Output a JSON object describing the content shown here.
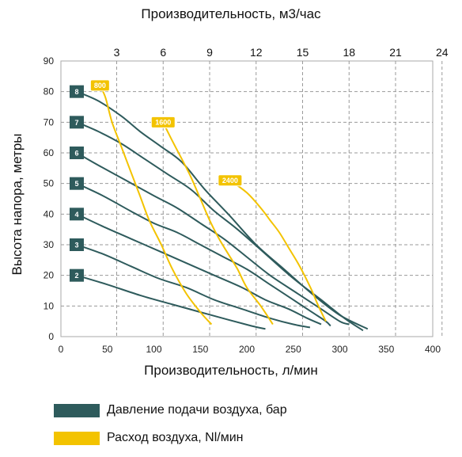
{
  "chart_data": {
    "type": "line",
    "title": "",
    "top_axis": {
      "label": "Производительность, м3/час",
      "ticks": [
        "3",
        "6",
        "9",
        "12",
        "15",
        "18",
        "21",
        "24"
      ],
      "tick_x": [
        60,
        110,
        160,
        210,
        260,
        310,
        360,
        410
      ]
    },
    "xlabel": "Производительность, л/мин",
    "ylabel": "Высота напора, метры",
    "xlim": [
      0,
      400
    ],
    "ylim": [
      0,
      90
    ],
    "x_ticks": [
      "0",
      "50",
      "100",
      "150",
      "200",
      "250",
      "300",
      "350",
      "400"
    ],
    "y_ticks": [
      "0",
      "10",
      "20",
      "30",
      "40",
      "50",
      "60",
      "70",
      "80",
      "90"
    ],
    "grid": true,
    "colors": {
      "pressure": "#2e5b5c",
      "air": "#f3c300"
    },
    "series": [
      {
        "group": "pressure",
        "tag": "8",
        "points": [
          [
            17,
            80
          ],
          [
            40,
            77
          ],
          [
            65,
            72
          ],
          [
            85,
            67
          ],
          [
            108,
            62
          ],
          [
            130,
            57
          ],
          [
            155,
            48
          ],
          [
            180,
            40
          ],
          [
            210,
            30
          ],
          [
            240,
            22
          ],
          [
            270,
            14
          ],
          [
            300,
            7
          ],
          [
            330,
            2.5
          ]
        ]
      },
      {
        "group": "pressure",
        "tag": "7",
        "points": [
          [
            17,
            70
          ],
          [
            40,
            67
          ],
          [
            65,
            63
          ],
          [
            90,
            58
          ],
          [
            115,
            53
          ],
          [
            140,
            48
          ],
          [
            165,
            41
          ],
          [
            190,
            35
          ],
          [
            220,
            27
          ],
          [
            250,
            19
          ],
          [
            280,
            12
          ],
          [
            305,
            6
          ],
          [
            325,
            2
          ]
        ]
      },
      {
        "group": "pressure",
        "tag": "6",
        "points": [
          [
            17,
            60
          ],
          [
            40,
            56
          ],
          [
            70,
            51
          ],
          [
            100,
            46
          ],
          [
            125,
            42
          ],
          [
            150,
            37
          ],
          [
            175,
            32
          ],
          [
            200,
            26
          ],
          [
            225,
            20
          ],
          [
            255,
            14
          ],
          [
            280,
            9
          ],
          [
            300,
            5
          ],
          [
            310,
            4
          ]
        ]
      },
      {
        "group": "pressure",
        "tag": "5",
        "points": [
          [
            17,
            50
          ],
          [
            45,
            46
          ],
          [
            75,
            41
          ],
          [
            100,
            37
          ],
          [
            125,
            34
          ],
          [
            150,
            30
          ],
          [
            175,
            26
          ],
          [
            200,
            22
          ],
          [
            225,
            17
          ],
          [
            250,
            12
          ],
          [
            270,
            8
          ],
          [
            285,
            5
          ],
          [
            290,
            3.5
          ]
        ]
      },
      {
        "group": "pressure",
        "tag": "4",
        "points": [
          [
            17,
            40
          ],
          [
            45,
            36
          ],
          [
            75,
            32
          ],
          [
            105,
            28
          ],
          [
            135,
            24
          ],
          [
            165,
            20
          ],
          [
            195,
            16
          ],
          [
            220,
            12
          ],
          [
            245,
            9
          ],
          [
            265,
            6
          ],
          [
            280,
            4
          ]
        ]
      },
      {
        "group": "pressure",
        "tag": "3",
        "points": [
          [
            17,
            30
          ],
          [
            45,
            27
          ],
          [
            75,
            23
          ],
          [
            105,
            19
          ],
          [
            135,
            16
          ],
          [
            165,
            12
          ],
          [
            195,
            9
          ],
          [
            225,
            6
          ],
          [
            250,
            4
          ],
          [
            268,
            3
          ]
        ]
      },
      {
        "group": "pressure",
        "tag": "2",
        "points": [
          [
            17,
            20
          ],
          [
            50,
            17
          ],
          [
            85,
            13.5
          ],
          [
            120,
            10.5
          ],
          [
            150,
            8
          ],
          [
            180,
            5.5
          ],
          [
            205,
            3.5
          ],
          [
            220,
            2.5
          ]
        ]
      },
      {
        "group": "air",
        "tag": "800",
        "points": [
          [
            42,
            82
          ],
          [
            48,
            78
          ],
          [
            55,
            70
          ],
          [
            65,
            62
          ],
          [
            75,
            54
          ],
          [
            85,
            46
          ],
          [
            95,
            38
          ],
          [
            108,
            30
          ],
          [
            120,
            22
          ],
          [
            135,
            14
          ],
          [
            150,
            8
          ],
          [
            162,
            4
          ]
        ]
      },
      {
        "group": "air",
        "tag": "1600",
        "points": [
          [
            110,
            70
          ],
          [
            118,
            65
          ],
          [
            130,
            58
          ],
          [
            140,
            52
          ],
          [
            150,
            45
          ],
          [
            160,
            38
          ],
          [
            170,
            32
          ],
          [
            180,
            27
          ],
          [
            190,
            22
          ],
          [
            200,
            16
          ],
          [
            215,
            10
          ],
          [
            228,
            4
          ]
        ]
      },
      {
        "group": "air",
        "tag": "2400",
        "points": [
          [
            182,
            51
          ],
          [
            200,
            47
          ],
          [
            215,
            42
          ],
          [
            225,
            38
          ],
          [
            235,
            34
          ],
          [
            245,
            29
          ],
          [
            255,
            24
          ],
          [
            262,
            20
          ],
          [
            270,
            15
          ],
          [
            277,
            10
          ],
          [
            285,
            5
          ]
        ]
      }
    ],
    "legend_position": "bottom-left"
  },
  "legend": [
    {
      "label": "Давление подачи воздуха, бар",
      "color": "#2e5b5c"
    },
    {
      "label": "Расход воздуха, Nl/мин",
      "color": "#f3c300"
    }
  ]
}
